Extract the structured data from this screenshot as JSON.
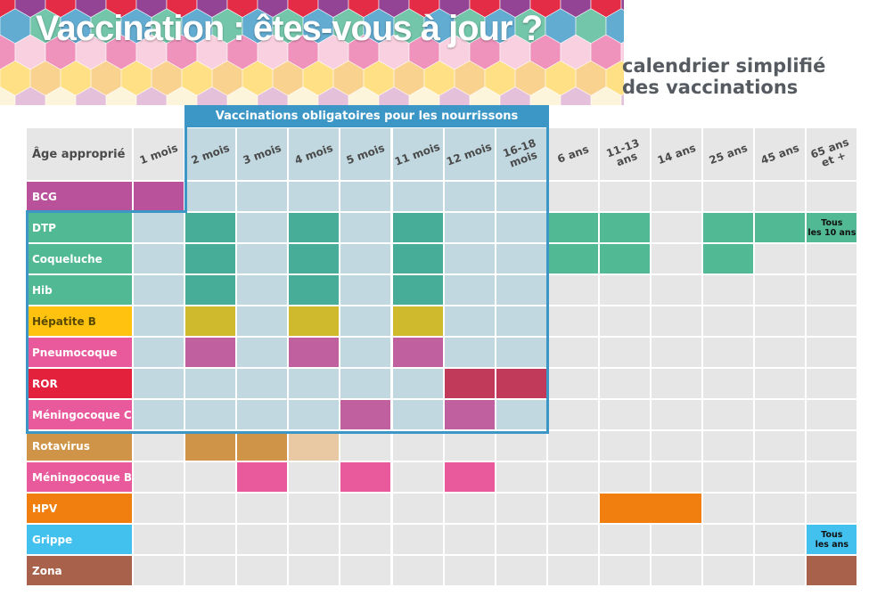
{
  "header": {
    "title": "Vaccination : êtes-vous à jour ?",
    "subtitle_line1": "calendrier simplifié",
    "subtitle_line2": "des vaccinations"
  },
  "table": {
    "mandatory_banner": "Vaccinations obligatoires pour les nourrissons",
    "corner_label": "Âge approprié",
    "ages": [
      "1 mois",
      "2 mois",
      "3 mois",
      "4 mois",
      "5 mois",
      "11 mois",
      "12 mois",
      "16-18\nmois",
      "6 ans",
      "11-13\nans",
      "14 ans",
      "25 ans",
      "45 ans",
      "65 ans\net +"
    ],
    "mandatory_age_range": [
      1,
      7
    ],
    "mandatory_rows": [
      "DTP",
      "Coqueluche",
      "Hib",
      "Hépatite B",
      "Pneumocoque",
      "ROR",
      "Méningocoque C"
    ],
    "vaccines": [
      {
        "name": "BCG",
        "color": "#b9529a",
        "text_color": "#ffffff",
        "doses": [
          0
        ],
        "notes": {}
      },
      {
        "name": "DTP",
        "color": "#52b995",
        "text_color": "#ffffff",
        "doses": [
          1,
          3,
          5,
          8,
          9,
          11,
          12
        ],
        "notes": {
          "13": "Tous\nles 10 ans"
        }
      },
      {
        "name": "Coqueluche",
        "color": "#52b995",
        "text_color": "#ffffff",
        "doses": [
          1,
          3,
          5,
          8,
          9,
          11
        ],
        "notes": {}
      },
      {
        "name": "Hib",
        "color": "#52b995",
        "text_color": "#ffffff",
        "doses": [
          1,
          3,
          5
        ],
        "notes": {}
      },
      {
        "name": "Hépatite B",
        "color": "#ffc20e",
        "text_color": "#5a4a00",
        "doses": [
          1,
          3,
          5
        ],
        "notes": {}
      },
      {
        "name": "Pneumocoque",
        "color": "#e85a9b",
        "text_color": "#ffffff",
        "doses": [
          1,
          3,
          5
        ],
        "notes": {}
      },
      {
        "name": "ROR",
        "color": "#e3213d",
        "text_color": "#ffffff",
        "doses": [
          6,
          7
        ],
        "notes": {}
      },
      {
        "name": "Méningocoque C",
        "color": "#e85a9b",
        "text_color": "#ffffff",
        "doses": [
          4,
          6
        ],
        "notes": {}
      },
      {
        "name": "Rotavirus",
        "color": "#cf9447",
        "text_color": "#ffffff",
        "doses": [
          1,
          2
        ],
        "light_doses": [
          3
        ],
        "notes": {}
      },
      {
        "name": "Méningocoque B",
        "color": "#e85a9b",
        "text_color": "#ffffff",
        "doses": [
          2,
          4,
          6
        ],
        "notes": {}
      },
      {
        "name": "HPV",
        "color": "#f07f0f",
        "text_color": "#ffffff",
        "doses": [
          9,
          10
        ],
        "notes": {}
      },
      {
        "name": "Grippe",
        "color": "#42c1ef",
        "text_color": "#ffffff",
        "doses": [],
        "notes": {
          "13": "Tous\nles ans"
        }
      },
      {
        "name": "Zona",
        "color": "#a8614a",
        "text_color": "#ffffff",
        "doses": [
          13
        ],
        "notes": {}
      }
    ],
    "colors": {
      "empty": "#e6e6e6",
      "mandatory_empty": "#c1d8e0",
      "frame": "#3c97c6",
      "dtp_in_mandatory": "#48ad98",
      "hepb_in_mandatory": "#cfba2e",
      "pink_in_mandatory": "#c0609f",
      "ror_in_mandatory": "#c23a59",
      "rota_light": "#e9c9a3",
      "note_dtp_bg": "#52b995",
      "note_grippe_bg": "#42c1ef"
    }
  }
}
